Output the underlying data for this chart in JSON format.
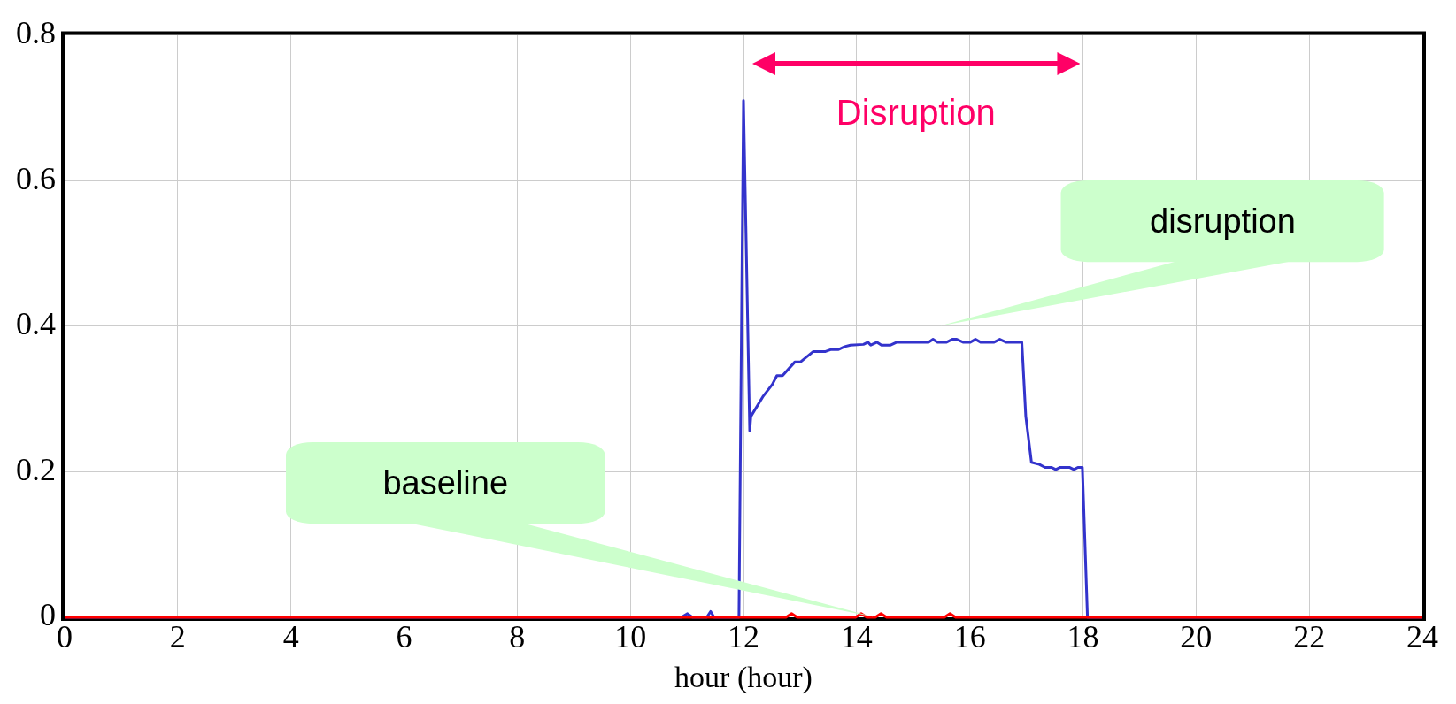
{
  "chart_data": {
    "type": "line",
    "xlabel": "hour (hour)",
    "xlim": [
      0,
      24
    ],
    "xticks": [
      0,
      2,
      4,
      6,
      8,
      10,
      12,
      14,
      16,
      18,
      20,
      22,
      24
    ],
    "ylim": [
      0,
      0.8
    ],
    "yticks": [
      0,
      0.2,
      0.4,
      0.6,
      0.8
    ],
    "grid": true,
    "legend": false,
    "marker": "none",
    "line_style": "solid",
    "annotations": [
      "Disruption"
    ],
    "series": [
      {
        "name": "baseline",
        "color": "#ff0000",
        "x": [
          0,
          11.92,
          12.75,
          12.85,
          12.95,
          13.98,
          14.08,
          14.18,
          14.33,
          14.43,
          14.53,
          15.55,
          15.65,
          15.75,
          24
        ],
        "values": [
          0,
          0,
          0,
          0.005,
          0,
          0,
          0.005,
          0,
          0,
          0.005,
          0,
          0,
          0.005,
          0,
          0
        ]
      },
      {
        "name": "disruption",
        "color": "#3333cc",
        "x": [
          0,
          10.9,
          11.01,
          11.1,
          11.35,
          11.42,
          11.48,
          11.92,
          12.0,
          12.11,
          12.13,
          12.35,
          12.51,
          12.59,
          12.69,
          12.91,
          13.01,
          13.23,
          13.44,
          13.55,
          13.68,
          13.79,
          13.89,
          14.12,
          14.2,
          14.25,
          14.36,
          14.44,
          14.6,
          14.71,
          15.27,
          15.35,
          15.43,
          15.59,
          15.69,
          15.77,
          15.88,
          16.01,
          16.1,
          16.19,
          16.43,
          16.53,
          16.64,
          16.92,
          16.99,
          17.09,
          17.23,
          17.33,
          17.44,
          17.52,
          17.6,
          17.76,
          17.84,
          17.91,
          17.99,
          18.08,
          24
        ],
        "values": [
          0,
          0,
          0.005,
          0,
          0,
          0.008,
          0,
          0,
          0.71,
          0.256,
          0.276,
          0.304,
          0.32,
          0.332,
          0.332,
          0.351,
          0.351,
          0.365,
          0.365,
          0.368,
          0.368,
          0.372,
          0.374,
          0.375,
          0.378,
          0.374,
          0.378,
          0.374,
          0.374,
          0.378,
          0.378,
          0.382,
          0.378,
          0.378,
          0.382,
          0.382,
          0.378,
          0.378,
          0.382,
          0.378,
          0.378,
          0.382,
          0.378,
          0.378,
          0.276,
          0.213,
          0.21,
          0.206,
          0.206,
          0.203,
          0.206,
          0.206,
          0.203,
          0.206,
          0.206,
          0,
          0
        ]
      }
    ]
  }
}
